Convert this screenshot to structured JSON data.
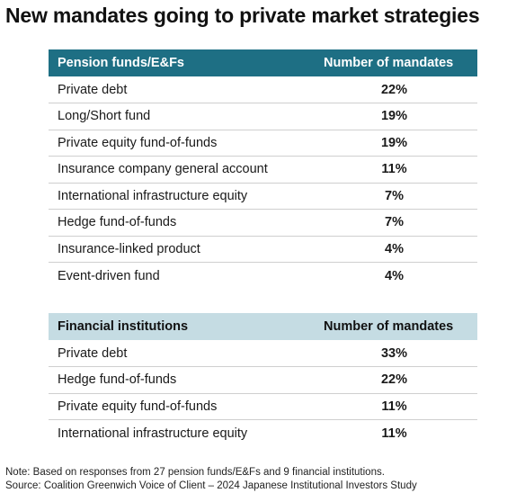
{
  "title": "New mandates going to private market strategies",
  "tables": [
    {
      "header": {
        "category": "Pension funds/E&Fs",
        "value": "Number of mandates"
      },
      "rows": [
        {
          "label": "Private debt",
          "value": "22%"
        },
        {
          "label": "Long/Short fund",
          "value": "19%"
        },
        {
          "label": "Private equity fund-of-funds",
          "value": "19%"
        },
        {
          "label": "Insurance company general account",
          "value": "11%"
        },
        {
          "label": "International infrastructure equity",
          "value": "7%"
        },
        {
          "label": "Hedge fund-of-funds",
          "value": "7%"
        },
        {
          "label": "Insurance-linked product",
          "value": "4%"
        },
        {
          "label": "Event-driven fund",
          "value": "4%"
        }
      ]
    },
    {
      "header": {
        "category": "Financial institutions",
        "value": "Number of mandates"
      },
      "rows": [
        {
          "label": "Private debt",
          "value": "33%"
        },
        {
          "label": "Hedge fund-of-funds",
          "value": "22%"
        },
        {
          "label": "Private equity fund-of-funds",
          "value": "11%"
        },
        {
          "label": "International infrastructure equity",
          "value": "11%"
        }
      ]
    }
  ],
  "notes": {
    "note": "Note: Based on responses from 27 pension funds/E&Fs and 9 financial institutions.",
    "source": "Source: Coalition Greenwich Voice of Client – 2024 Japanese Institutional Investors Study"
  },
  "colors": {
    "pension_header": "#1e6f84",
    "financial_header": "#c5dce3"
  }
}
